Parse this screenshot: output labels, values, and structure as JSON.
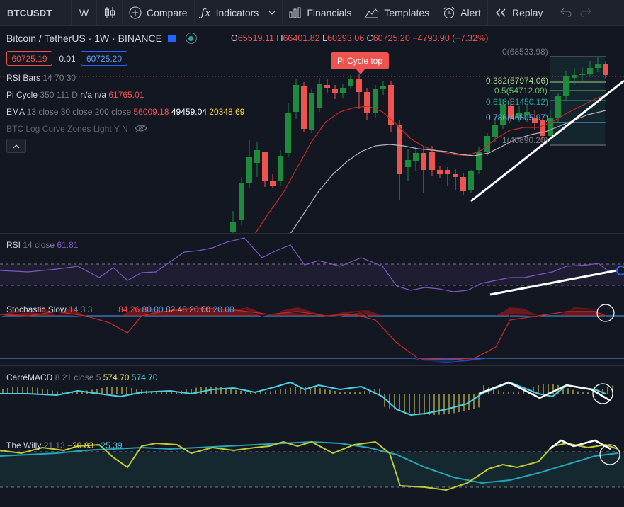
{
  "toolbar": {
    "symbol": "BTCUSDT",
    "interval": "W",
    "compare": "Compare",
    "indicators": "Indicators",
    "financials": "Financials",
    "templates": "Templates",
    "alert": "Alert",
    "replay": "Replay"
  },
  "header": {
    "title": "Bitcoin / TetherUS · 1W · BINANCE",
    "ohlc": {
      "o_label": "O",
      "o": "65519.11",
      "h_label": "H",
      "h": "66401.82",
      "l_label": "L",
      "l": "60293.06",
      "c_label": "C",
      "c": "60725.20",
      "change": "−4793.90 (−7.32%)"
    },
    "bid": "60725.19",
    "spread": "0.01",
    "ask": "60725.20"
  },
  "indicators": {
    "rsi_bars": {
      "name": "RSI Bars",
      "inputs": "14 70 30"
    },
    "pi_cycle": {
      "name": "Pi Cycle",
      "inputs": "350 111 D",
      "na": "n/a n/a",
      "value": "61765.01"
    },
    "ema": {
      "name": "EMA",
      "inputs": "13 close 30 close 200 close",
      "v1": "56009.18",
      "v2": "49459.04",
      "v3": "20348.69"
    },
    "btc_log": {
      "name": "BTC Log Curve Zones Light",
      "inputs": "Y N"
    }
  },
  "pi_cycle_label": "Pi Cycle top",
  "fib_levels": {
    "f0": "0(68533.98)",
    "f0382": "0.382(57974.06)",
    "f05": "0.5(54712.09)",
    "f0618": "0.618(51450.12)",
    "f0786": "0.786(46805.97)",
    "f1": "1(40890.20)"
  },
  "panes": {
    "rsi": {
      "name": "RSI",
      "inputs": "14 close",
      "value": "61.81"
    },
    "stoch": {
      "name": "Stochastic Slow",
      "inputs": "14 3 3",
      "v0": "82.48",
      "v1": "84.26",
      "v2": "80.00",
      "v3": "82.48",
      "v4": "20.00",
      "v5": "20.00"
    },
    "macd": {
      "name": "CarréMACD",
      "inputs": "8 21 close 5",
      "v1": "574.70",
      "v2": "574.70"
    },
    "willy": {
      "name": "The Willy",
      "inputs": "21 13",
      "v1": "−20.83",
      "v2": "−25.39"
    }
  },
  "colors": {
    "up": "#26a69a",
    "down": "#ef5350",
    "up_candle": "#1e8a3c",
    "rsi_line": "#7e57c2",
    "macd_line": "#4dd0e1",
    "macd_hist": "#e8e45a",
    "willy_fast": "#c0ca33",
    "willy_slow": "#26a5b8"
  }
}
